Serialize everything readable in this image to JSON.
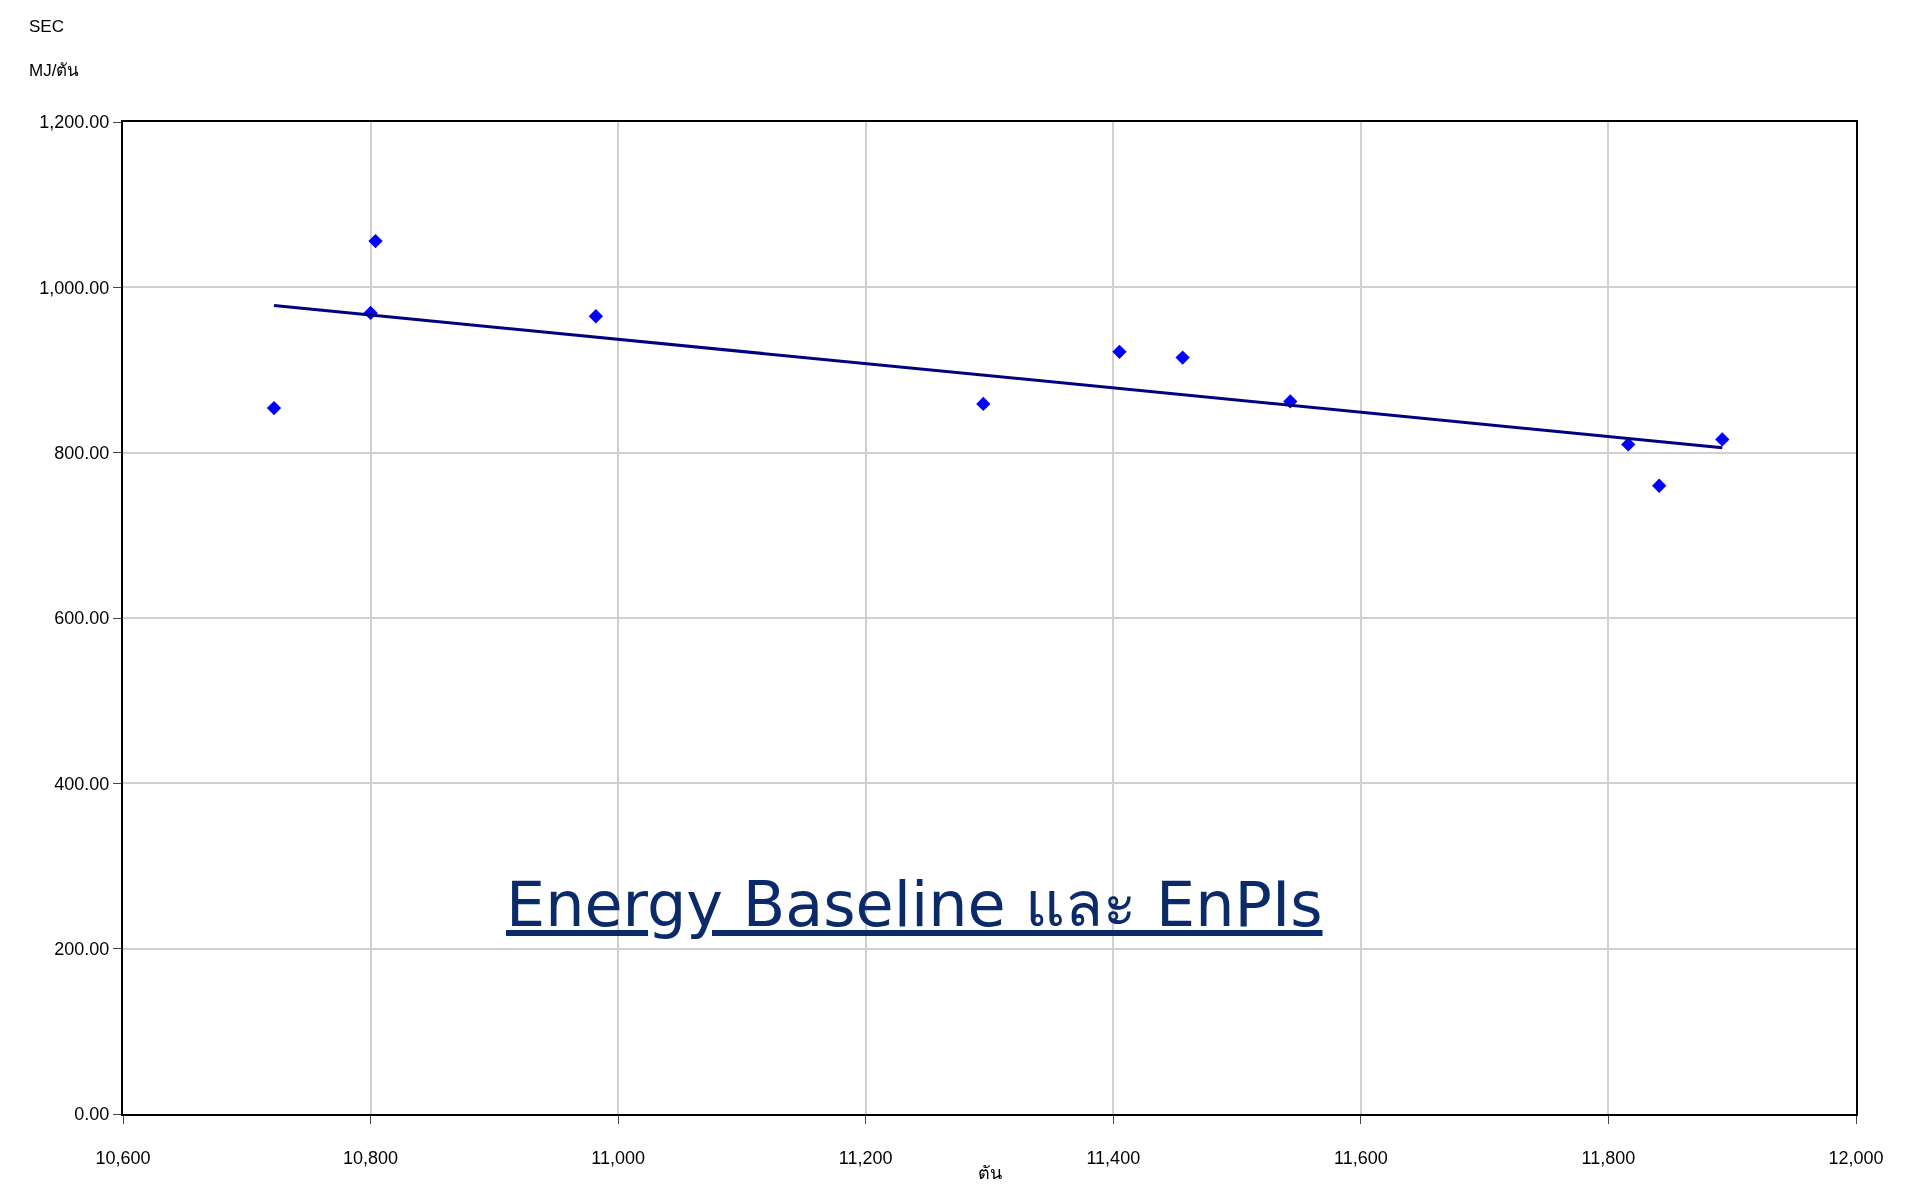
{
  "chart_data": {
    "type": "scatter",
    "xlabel": "ตัน",
    "ylabel": "SEC\nMJ/ตัน",
    "marker": "diamond",
    "grid": true,
    "annotations": [
      "Energy Baseline และ EnPIs"
    ],
    "x": [
      10722,
      10800,
      10804,
      10982,
      11295,
      11405,
      11456,
      11543,
      11816,
      11841,
      11892
    ],
    "series": [
      {
        "color": "#0000ff",
        "values": [
          854,
          969,
          1056,
          965,
          859,
          922,
          915,
          862,
          810,
          760,
          816
        ]
      },
      {
        "type": "line",
        "color": "#000080",
        "x": [
          10722,
          11892
        ],
        "values": [
          978,
          806
        ],
        "marker": "none"
      }
    ],
    "xlim": [
      10600,
      12000
    ],
    "xticks": [
      {
        "value": 10600,
        "label": "10,600"
      },
      {
        "value": 10800,
        "label": "10,800"
      },
      {
        "value": 11000,
        "label": "11,000"
      },
      {
        "value": 11200,
        "label": "11,200"
      },
      {
        "value": 11400,
        "label": "11,400"
      },
      {
        "value": 11600,
        "label": "11,600"
      },
      {
        "value": 11800,
        "label": "11,800"
      },
      {
        "value": 12000,
        "label": "12,000"
      }
    ],
    "ylim": [
      0,
      1200
    ],
    "yticks": [
      {
        "value": 0,
        "label": "0.00"
      },
      {
        "value": 200,
        "label": "200.00"
      },
      {
        "value": 400,
        "label": "400.00"
      },
      {
        "value": 600,
        "label": "600.00"
      },
      {
        "value": 800,
        "label": "800.00"
      },
      {
        "value": 1000,
        "label": "1,000.00"
      },
      {
        "value": 1200,
        "label": "1,200.00"
      }
    ]
  }
}
